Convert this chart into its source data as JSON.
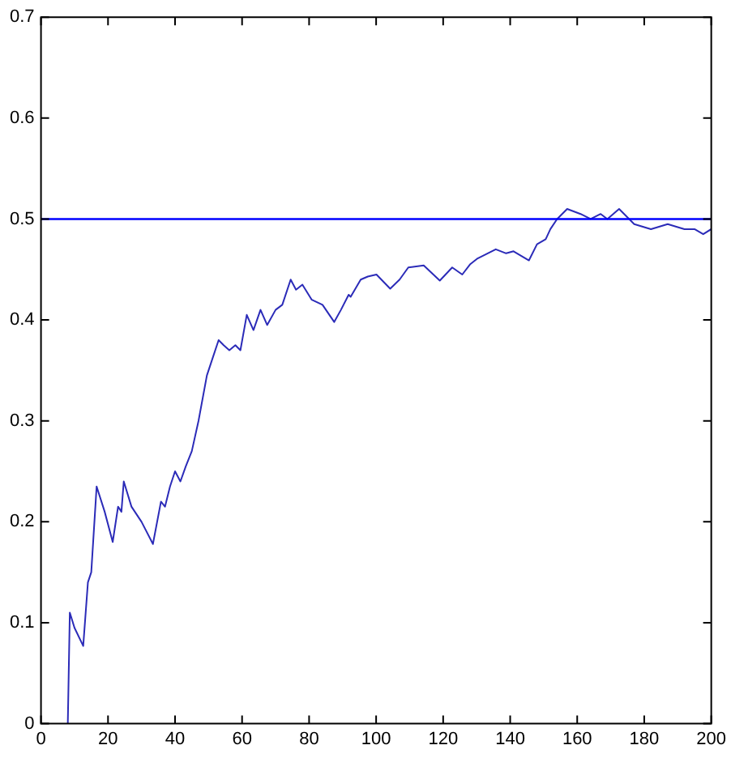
{
  "chart_data": {
    "type": "line",
    "x": [
      8,
      8.6,
      10,
      12.6,
      14,
      15,
      16.6,
      19,
      21.4,
      23,
      24,
      24.7,
      27,
      30,
      33.4,
      35.8,
      37,
      38.5,
      40,
      41.6,
      43.2,
      45,
      47,
      49.5,
      51,
      53,
      54.5,
      56.2,
      58,
      59.5,
      61.4,
      63.4,
      65.5,
      67.5,
      70,
      72,
      74.5,
      76.1,
      78,
      80.8,
      84,
      87.5,
      89.5,
      91.8,
      92.4,
      95.4,
      97.5,
      100.1,
      104.2,
      107,
      109.6,
      114.2,
      119,
      122.7,
      125.7,
      128,
      130.3,
      135.7,
      138.8,
      141,
      145.6,
      148,
      150.6,
      152,
      154,
      157,
      161,
      164,
      167,
      169,
      172.5,
      177,
      182,
      187,
      192,
      195,
      197.6,
      200
    ],
    "series": [
      {
        "color": "#2b2bb8",
        "values": [
          0,
          0.11,
          0.095,
          0.077,
          0.14,
          0.15,
          0.235,
          0.21,
          0.18,
          0.215,
          0.21,
          0.24,
          0.215,
          0.2,
          0.178,
          0.22,
          0.215,
          0.235,
          0.25,
          0.24,
          0.255,
          0.27,
          0.3,
          0.345,
          0.36,
          0.38,
          0.375,
          0.37,
          0.375,
          0.37,
          0.405,
          0.39,
          0.41,
          0.395,
          0.41,
          0.415,
          0.44,
          0.43,
          0.435,
          0.42,
          0.415,
          0.398,
          0.41,
          0.425,
          0.423,
          0.44,
          0.443,
          0.445,
          0.431,
          0.44,
          0.452,
          0.454,
          0.439,
          0.452,
          0.445,
          0.455,
          0.461,
          0.47,
          0.466,
          0.468,
          0.459,
          0.475,
          0.48,
          0.49,
          0.5,
          0.51,
          0.505,
          0.5,
          0.505,
          0.5,
          0.51,
          0.495,
          0.49,
          0.495,
          0.49,
          0.49,
          0.485,
          0.49
        ]
      }
    ],
    "xlim": [
      0,
      200
    ],
    "xticks": [
      0,
      20,
      40,
      60,
      80,
      100,
      120,
      140,
      160,
      180,
      200
    ],
    "ylim": [
      0,
      0.7
    ],
    "yticks": [
      0,
      0.1,
      0.2,
      0.3,
      0.4,
      0.5,
      0.6,
      0.7
    ],
    "ref_lines": [
      {
        "axis": "y",
        "value": 0.5,
        "color": "#0000ff"
      }
    ],
    "grid": false,
    "legend": false,
    "marker": "none",
    "line_style": "solid"
  }
}
